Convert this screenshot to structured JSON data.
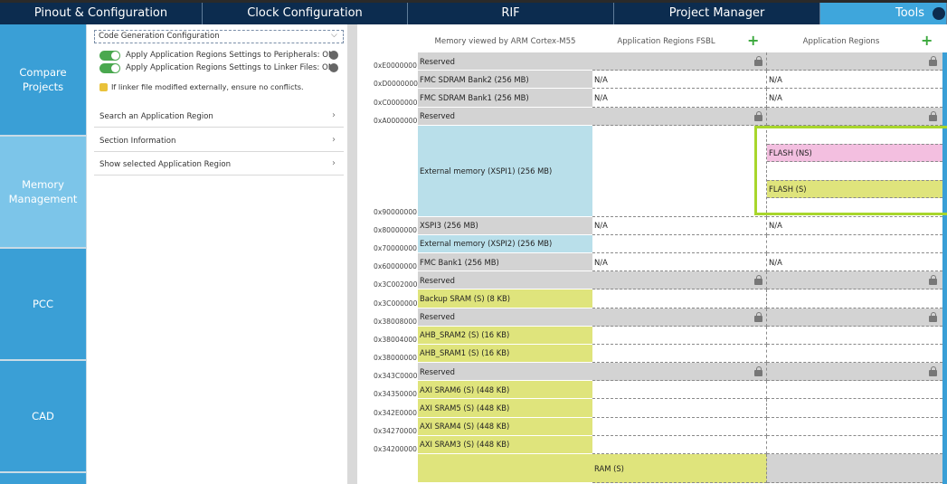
{
  "tabs": [
    "Pinout & Configuration",
    "Clock Configuration",
    "RIF",
    "Project Manager",
    "Tools"
  ],
  "sidebar": [
    "Compare Projects",
    "Memory Management",
    "PCC",
    "CAD"
  ],
  "config": {
    "dropdown": "Code Generation Configuration",
    "toggles": [
      "Apply Application Regions Settings to Peripherals: ON",
      "Apply Application Regions Settings to Linker Files: ON"
    ],
    "note": "If linker file modified externally, ensure no conflicts.",
    "menu": [
      "Search an Application Region",
      "Section Information",
      "Show selected Application Region"
    ]
  },
  "memory": {
    "headers": [
      "Memory viewed by ARM Cortex-M55",
      "Application Regions FSBL",
      "Application Regions"
    ],
    "rows": [
      {
        "address": "0xE0000000",
        "name": "Reserved",
        "color": "#d3d3d3",
        "locked": true
      },
      {
        "address": "0xD0000000",
        "name": "FMC SDRAM Bank2 (256 MB)",
        "color": "#d3d3d3",
        "fsbl": "N/A",
        "app": "N/A"
      },
      {
        "address": "0xC0000000",
        "name": "FMC SDRAM Bank1 (256 MB)",
        "color": "#d3d3d3",
        "fsbl": "N/A",
        "app": "N/A"
      },
      {
        "address": "0xA0000000",
        "name": "Reserved",
        "color": "#d3d3d3",
        "locked": true
      },
      {
        "address": "0x90000000",
        "name": "External memory (XSPI1) (256 MB)",
        "color": "#b9dfea",
        "app_regions": [
          {
            "name": "FLASH (NS)",
            "color": "#f3bfe0"
          },
          {
            "name": "FLASH (S)",
            "color": "#dfe47c"
          }
        ]
      },
      {
        "address": "0x80000000",
        "name": "XSPI3 (256 MB)",
        "color": "#d3d3d3",
        "fsbl": "N/A",
        "app": "N/A"
      },
      {
        "address": "0x70000000",
        "name": "External memory (XSPI2) (256 MB)",
        "color": "#b9dfea"
      },
      {
        "address": "0x60000000",
        "name": "FMC Bank1 (256 MB)",
        "color": "#d3d3d3",
        "fsbl": "N/A",
        "app": "N/A"
      },
      {
        "address": "0x3C002000",
        "name": "Reserved",
        "color": "#d3d3d3",
        "locked": true
      },
      {
        "address": "0x3C000000",
        "name": "Backup SRAM (S) (8 KB)",
        "color": "#dfe47c"
      },
      {
        "address": "0x38008000",
        "name": "Reserved",
        "color": "#d3d3d3",
        "locked": true
      },
      {
        "address": "0x38004000",
        "name": "AHB_SRAM2 (S) (16 KB)",
        "color": "#dfe47c"
      },
      {
        "address": "0x38000000",
        "name": "AHB_SRAM1 (S) (16 KB)",
        "color": "#dfe47c"
      },
      {
        "address": "0x343C0000",
        "name": "Reserved",
        "color": "#d3d3d3",
        "locked": true
      },
      {
        "address": "0x34350000",
        "name": "AXI SRAM6 (S) (448 KB)",
        "color": "#dfe47c"
      },
      {
        "address": "0x342E0000",
        "name": "AXI SRAM5 (S) (448 KB)",
        "color": "#dfe47c"
      },
      {
        "address": "0x34270000",
        "name": "AXI SRAM4 (S) (448 KB)",
        "color": "#dfe47c"
      },
      {
        "address": "0x34200000",
        "name": "AXI SRAM3 (S) (448 KB)",
        "color": "#dfe47c"
      },
      {
        "name": "",
        "color": "#dfe47c",
        "fsbl": "RAM (S)",
        "fsbl_color": "#dfe47c",
        "app_color": "#d3d3d3"
      }
    ]
  }
}
